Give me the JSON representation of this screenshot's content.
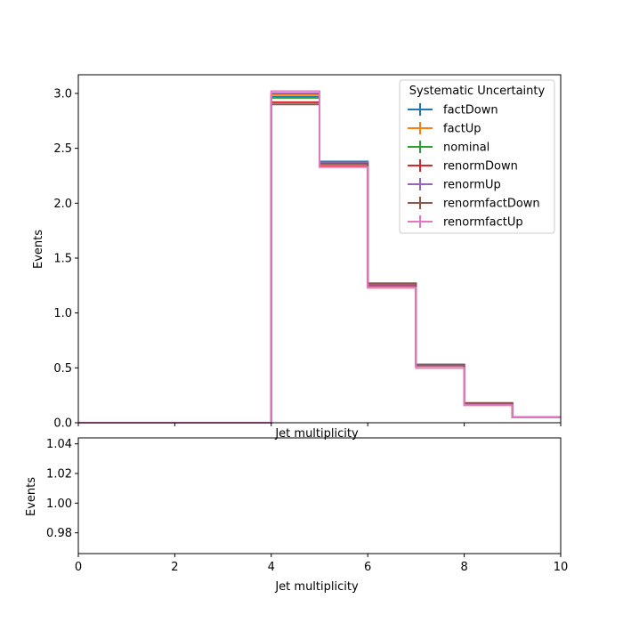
{
  "chart_data": [
    {
      "type": "step",
      "xlabel": "Jet multiplicity",
      "ylabel": "Events",
      "xlim": [
        0,
        10
      ],
      "ylim": [
        0,
        3.17
      ],
      "yticks": [
        "0.0",
        "0.5",
        "1.0",
        "1.5",
        "2.0",
        "2.5",
        "3.0"
      ],
      "ytick_values": [
        0.0,
        0.5,
        1.0,
        1.5,
        2.0,
        2.5,
        3.0
      ],
      "bin_edges": [
        0,
        1,
        2,
        3,
        4,
        5,
        6,
        7,
        8,
        9,
        10
      ],
      "legend": {
        "title": "Systematic Uncertainty",
        "placement": "top-right"
      },
      "series": [
        {
          "name": "factDown",
          "color": "#1f77b4",
          "values": [
            0,
            0,
            0,
            0,
            2.97,
            2.38,
            1.27,
            0.53,
            0.17,
            0.05
          ]
        },
        {
          "name": "factUp",
          "color": "#ff7f0e",
          "values": [
            0,
            0,
            0,
            0,
            2.99,
            2.33,
            1.23,
            0.5,
            0.16,
            0.05
          ]
        },
        {
          "name": "nominal",
          "color": "#2ca02c",
          "values": [
            0,
            0,
            0,
            0,
            2.96,
            2.36,
            1.26,
            0.52,
            0.17,
            0.05
          ]
        },
        {
          "name": "renormDown",
          "color": "#d62728",
          "values": [
            0,
            0,
            0,
            0,
            2.92,
            2.34,
            1.25,
            0.52,
            0.17,
            0.05
          ]
        },
        {
          "name": "renormUp",
          "color": "#9467bd",
          "values": [
            0,
            0,
            0,
            0,
            3.0,
            2.37,
            1.26,
            0.52,
            0.17,
            0.05
          ]
        },
        {
          "name": "renormfactDown",
          "color": "#8c564b",
          "values": [
            0,
            0,
            0,
            0,
            2.9,
            2.36,
            1.27,
            0.53,
            0.18,
            0.05
          ]
        },
        {
          "name": "renormfactUp",
          "color": "#e377c2",
          "values": [
            0,
            0,
            0,
            0,
            3.02,
            2.33,
            1.23,
            0.5,
            0.16,
            0.05
          ]
        }
      ]
    },
    {
      "type": "line",
      "xlabel": "Jet multiplicity",
      "ylabel": "Events",
      "xlim": [
        0,
        10
      ],
      "ylim": [
        0.966,
        1.044
      ],
      "xticks": [
        "0",
        "2",
        "4",
        "6",
        "8",
        "10"
      ],
      "xtick_values": [
        0,
        2,
        4,
        6,
        8,
        10
      ],
      "yticks": [
        "0.98",
        "1.00",
        "1.02",
        "1.04"
      ],
      "ytick_values": [
        0.98,
        1.0,
        1.02,
        1.04
      ],
      "series": []
    }
  ]
}
